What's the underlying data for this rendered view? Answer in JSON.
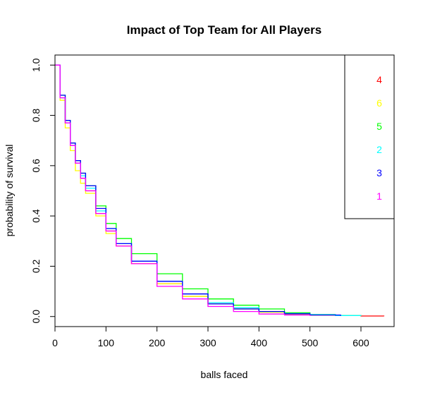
{
  "chart_data": {
    "type": "line",
    "title": "Impact of Top Team for All Players",
    "xlabel": "balls faced",
    "ylabel": "probability of survival",
    "xlim": [
      0,
      665
    ],
    "ylim": [
      -0.04,
      1.04
    ],
    "x_ticks": [
      0,
      100,
      200,
      300,
      400,
      500,
      600
    ],
    "y_ticks": [
      0.0,
      0.2,
      0.4,
      0.6,
      0.8,
      1.0
    ],
    "x_tick_labels": [
      "0",
      "100",
      "200",
      "300",
      "400",
      "500",
      "600"
    ],
    "y_tick_labels": [
      "0.0",
      "0.2",
      "0.4",
      "0.6",
      "0.8",
      "1.0"
    ],
    "legend_position": "top-right",
    "grid": false,
    "series": [
      {
        "name": "4",
        "color": "#ff0000",
        "x": [
          0,
          10,
          20,
          30,
          40,
          50,
          60,
          80,
          100,
          120,
          150,
          200,
          250,
          300,
          350,
          400,
          450,
          500,
          550,
          600,
          645
        ],
        "y": [
          1.0,
          0.87,
          0.77,
          0.68,
          0.61,
          0.55,
          0.5,
          0.41,
          0.34,
          0.28,
          0.21,
          0.13,
          0.08,
          0.05,
          0.03,
          0.018,
          0.01,
          0.006,
          0.004,
          0.002,
          0.001
        ]
      },
      {
        "name": "6",
        "color": "#ffff00",
        "x": [
          0,
          10,
          20,
          30,
          40,
          50,
          60,
          80,
          100,
          120,
          150,
          200,
          250,
          300,
          350,
          400,
          450,
          500,
          550,
          600
        ],
        "y": [
          1.0,
          0.86,
          0.75,
          0.66,
          0.58,
          0.53,
          0.49,
          0.4,
          0.33,
          0.28,
          0.21,
          0.13,
          0.08,
          0.05,
          0.03,
          0.017,
          0.01,
          0.006,
          0.004,
          0.002
        ]
      },
      {
        "name": "5",
        "color": "#00ff00",
        "x": [
          0,
          10,
          20,
          30,
          40,
          50,
          60,
          80,
          100,
          120,
          150,
          200,
          250,
          300,
          350,
          400,
          450,
          500,
          550
        ],
        "y": [
          1.0,
          0.88,
          0.78,
          0.69,
          0.62,
          0.57,
          0.52,
          0.44,
          0.37,
          0.31,
          0.25,
          0.17,
          0.11,
          0.07,
          0.045,
          0.03,
          0.015,
          0.008,
          0.003
        ]
      },
      {
        "name": "2",
        "color": "#00ffff",
        "x": [
          0,
          10,
          20,
          30,
          40,
          50,
          60,
          80,
          100,
          120,
          150,
          200,
          250,
          300,
          350,
          400,
          450,
          500,
          550,
          600
        ],
        "y": [
          1.0,
          0.87,
          0.77,
          0.68,
          0.61,
          0.56,
          0.51,
          0.42,
          0.35,
          0.29,
          0.22,
          0.14,
          0.09,
          0.055,
          0.035,
          0.02,
          0.012,
          0.007,
          0.004,
          0.002
        ]
      },
      {
        "name": "3",
        "color": "#0000ff",
        "x": [
          0,
          10,
          20,
          30,
          40,
          50,
          60,
          80,
          100,
          120,
          150,
          200,
          250,
          300,
          350,
          400,
          450,
          500,
          560
        ],
        "y": [
          1.0,
          0.88,
          0.78,
          0.69,
          0.62,
          0.57,
          0.52,
          0.43,
          0.35,
          0.29,
          0.22,
          0.14,
          0.09,
          0.05,
          0.03,
          0.02,
          0.011,
          0.006,
          0.003
        ]
      },
      {
        "name": "1",
        "color": "#ff00ff",
        "x": [
          0,
          10,
          20,
          30,
          40,
          50,
          60,
          80,
          100,
          120,
          150,
          200,
          250,
          300,
          350,
          400,
          450,
          500
        ],
        "y": [
          1.0,
          0.87,
          0.77,
          0.68,
          0.61,
          0.55,
          0.5,
          0.41,
          0.34,
          0.28,
          0.21,
          0.12,
          0.07,
          0.04,
          0.02,
          0.01,
          0.006,
          0.003
        ]
      }
    ]
  }
}
